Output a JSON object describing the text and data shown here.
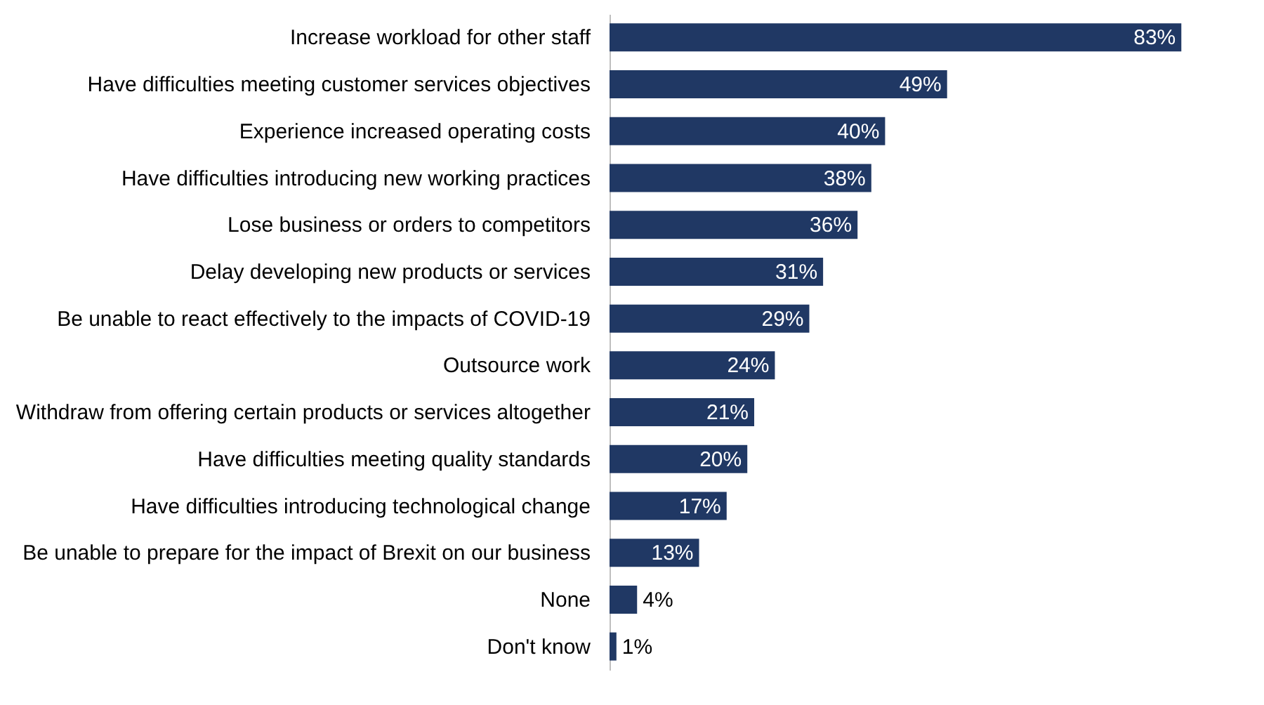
{
  "chart_data": {
    "type": "bar",
    "orientation": "horizontal",
    "color": "#203864",
    "categories": [
      "Increase workload for other staff",
      "Have difficulties meeting customer services objectives",
      "Experience increased operating costs",
      "Have difficulties introducing new working practices",
      "Lose business or orders to competitors",
      "Delay developing new products or services",
      "Be unable to react effectively to the impacts of COVID-19",
      "Outsource work",
      "Withdraw from offering certain products or services altogether",
      "Have difficulties meeting quality standards",
      "Have difficulties introducing technological change",
      "Be unable to prepare for the impact of Brexit on our business",
      "None",
      "Don't know"
    ],
    "values": [
      83,
      49,
      40,
      38,
      36,
      31,
      29,
      24,
      21,
      20,
      17,
      13,
      4,
      1
    ],
    "value_labels": [
      "83%",
      "49%",
      "40%",
      "38%",
      "36%",
      "31%",
      "29%",
      "24%",
      "21%",
      "20%",
      "17%",
      "13%",
      "4%",
      "1%"
    ]
  }
}
